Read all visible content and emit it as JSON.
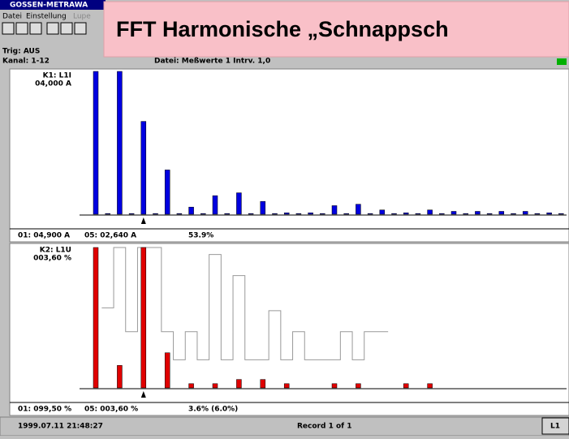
{
  "window": {
    "title": "GOSSEN-METRAWA",
    "menu": [
      "Datei",
      "Einstellung",
      "Lupe"
    ]
  },
  "overlay": {
    "title": "FFT Harmonische „Schnappsch"
  },
  "info": {
    "trig": "Trig: AUS",
    "kanal": "Kanal: 1-12",
    "datei": "Datei:  Meßwerte 1   Intrv. 1,0"
  },
  "panels": [
    {
      "label": "K1: L1I",
      "scale": "04,000  A",
      "color": "#0000e0",
      "bars": [
        100,
        0.5,
        100,
        0.5,
        65,
        0.5,
        31,
        0.5,
        5,
        0.5,
        13,
        0.5,
        15,
        0.5,
        9,
        0.5,
        1,
        0.5,
        1,
        0.5,
        6,
        0.5,
        7,
        0.5,
        3,
        0.5,
        1,
        0.5,
        3,
        0.5,
        2,
        0.5,
        2,
        0.5,
        2,
        0.5,
        2,
        0.5,
        1,
        0.5
      ],
      "status": [
        "01: 04,900  A",
        "05: 02,640  A",
        "53.9%"
      ]
    },
    {
      "label": "K2: L1U",
      "scale": "003,60  %",
      "color": "#e00000",
      "bars": [
        100,
        0,
        16,
        0,
        100,
        0,
        25,
        0,
        3,
        0,
        3,
        0,
        6,
        0,
        6,
        0,
        3,
        0,
        0,
        0,
        3,
        0,
        3,
        0,
        0,
        0,
        3,
        0,
        3,
        0,
        0,
        0,
        0,
        0,
        0,
        0,
        0,
        0,
        0,
        0
      ],
      "limits": [
        null,
        57,
        100,
        40,
        100,
        100,
        40,
        20,
        40,
        20,
        95,
        20,
        80,
        20,
        20,
        55,
        20,
        40,
        20,
        20,
        20,
        40,
        20,
        40,
        40
      ],
      "status": [
        "01: 099,50  %",
        "05: 003,60  %",
        "3.6% (6.0%)"
      ]
    }
  ],
  "statusbar": {
    "datetime": "1999.07.11 21:48:27",
    "record": "Record 1 of 1",
    "button": "L1"
  }
}
